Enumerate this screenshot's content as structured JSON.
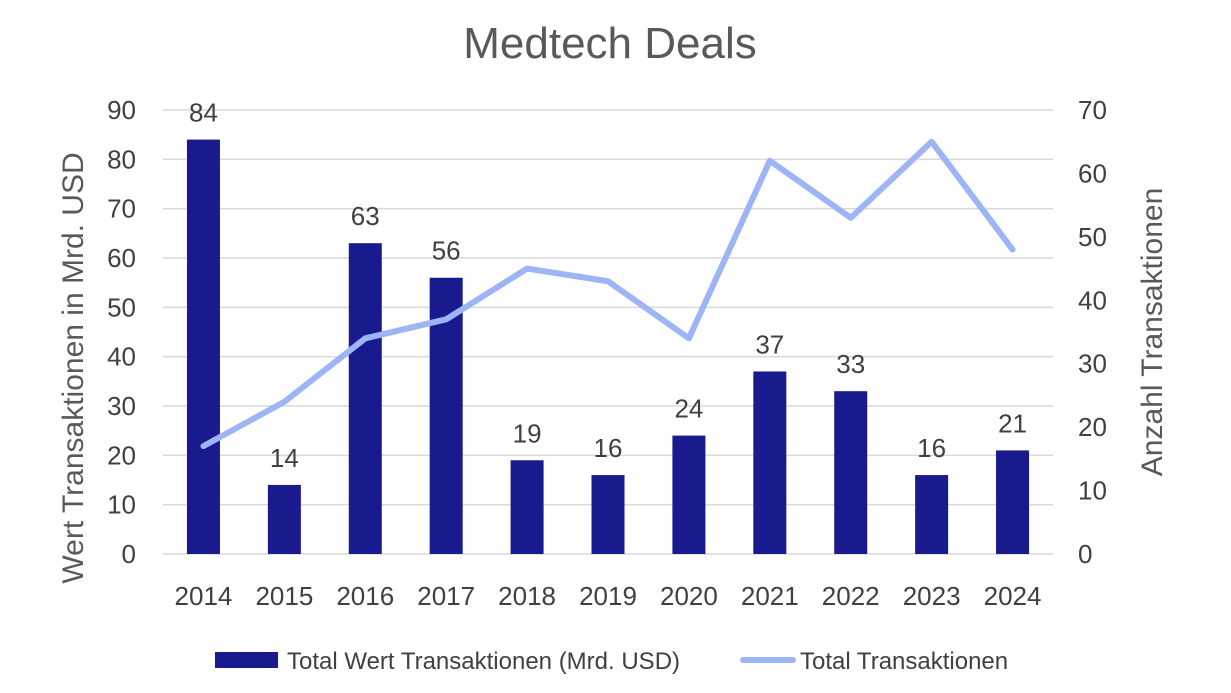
{
  "chart_data": {
    "type": "bar",
    "title": "Medtech Deals",
    "categories": [
      "2014",
      "2015",
      "2016",
      "2017",
      "2018",
      "2019",
      "2020",
      "2021",
      "2022",
      "2023",
      "2024"
    ],
    "series": [
      {
        "name": "Total Wert Transaktionen (Mrd. USD)",
        "type": "bar",
        "axis": "left",
        "color": "#1a1a8f",
        "values": [
          84,
          14,
          63,
          56,
          19,
          16,
          24,
          37,
          33,
          16,
          21
        ],
        "data_labels": [
          "84",
          "14",
          "63",
          "56",
          "19",
          "16",
          "24",
          "37",
          "33",
          "16",
          "21"
        ]
      },
      {
        "name": "Total Transaktionen",
        "type": "line",
        "axis": "right",
        "color": "#9db4f5",
        "values": [
          17,
          24,
          34,
          37,
          45,
          43,
          34,
          62,
          53,
          65,
          48
        ]
      }
    ],
    "ylabel": "Wert Transaktionen in Mrd. USD",
    "ylabel_right": "Anzahl Transaktionen",
    "ylim": [
      0,
      90
    ],
    "ylim_right": [
      0,
      70
    ],
    "yticks": [
      "0",
      "10",
      "20",
      "30",
      "40",
      "50",
      "60",
      "70",
      "80",
      "90"
    ],
    "yticks_right": [
      "0",
      "10",
      "20",
      "30",
      "40",
      "50",
      "60",
      "70"
    ],
    "grid": true,
    "legend_position": "bottom"
  }
}
